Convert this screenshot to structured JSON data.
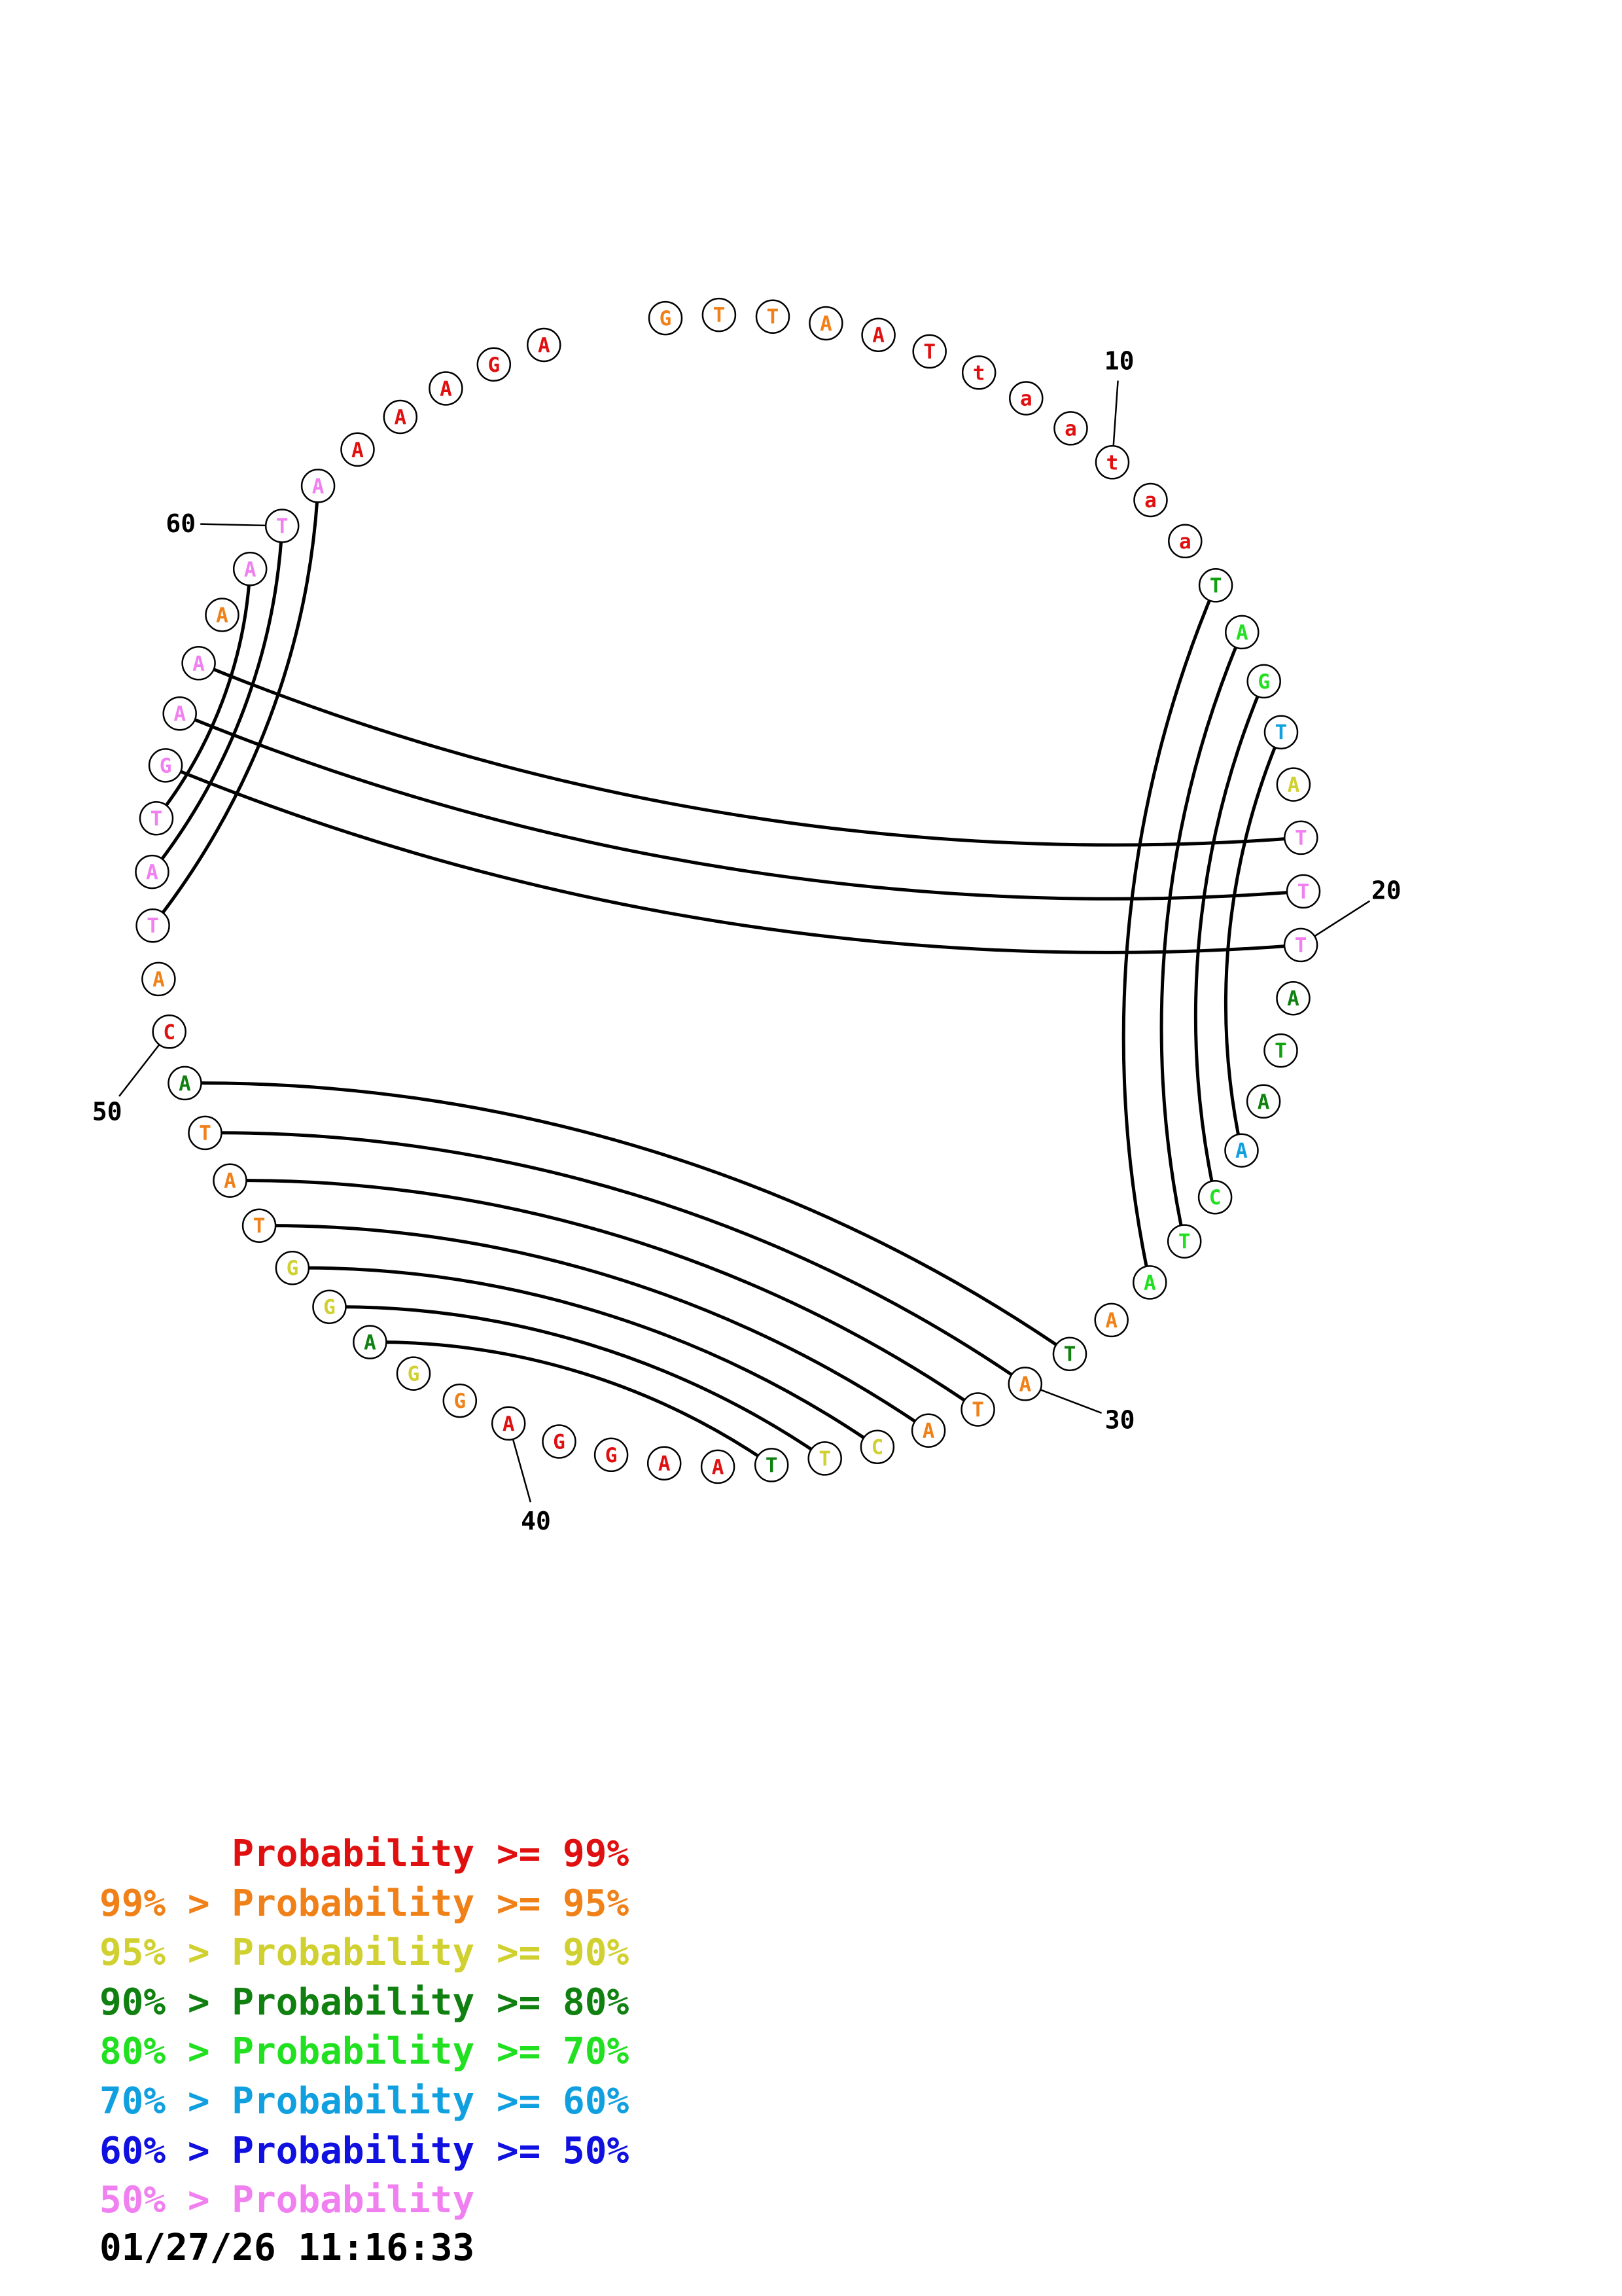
{
  "sequence": [
    {
      "n": 1,
      "base": "G",
      "color": "#f08018"
    },
    {
      "n": 2,
      "base": "T",
      "color": "#f08018"
    },
    {
      "n": 3,
      "base": "T",
      "color": "#f08018"
    },
    {
      "n": 4,
      "base": "A",
      "color": "#f08018"
    },
    {
      "n": 5,
      "base": "A",
      "color": "#e01010"
    },
    {
      "n": 6,
      "base": "T",
      "color": "#e01010"
    },
    {
      "n": 7,
      "base": "t",
      "color": "#e01010"
    },
    {
      "n": 8,
      "base": "a",
      "color": "#e01010"
    },
    {
      "n": 9,
      "base": "a",
      "color": "#e01010"
    },
    {
      "n": 10,
      "base": "t",
      "color": "#e01010"
    },
    {
      "n": 11,
      "base": "a",
      "color": "#e01010"
    },
    {
      "n": 12,
      "base": "a",
      "color": "#e01010"
    },
    {
      "n": 13,
      "base": "T",
      "color": "#10a010"
    },
    {
      "n": 14,
      "base": "A",
      "color": "#20e020"
    },
    {
      "n": 15,
      "base": "G",
      "color": "#20e020"
    },
    {
      "n": 16,
      "base": "T",
      "color": "#10a0e0"
    },
    {
      "n": 17,
      "base": "A",
      "color": "#d0d030"
    },
    {
      "n": 18,
      "base": "T",
      "color": "#f080f0"
    },
    {
      "n": 19,
      "base": "T",
      "color": "#f080f0"
    },
    {
      "n": 20,
      "base": "T",
      "color": "#f080f0"
    },
    {
      "n": 21,
      "base": "A",
      "color": "#108010"
    },
    {
      "n": 22,
      "base": "T",
      "color": "#10a010"
    },
    {
      "n": 23,
      "base": "A",
      "color": "#108010"
    },
    {
      "n": 24,
      "base": "A",
      "color": "#10a0e0"
    },
    {
      "n": 25,
      "base": "C",
      "color": "#20e020"
    },
    {
      "n": 26,
      "base": "T",
      "color": "#20e020"
    },
    {
      "n": 27,
      "base": "A",
      "color": "#20e020"
    },
    {
      "n": 28,
      "base": "A",
      "color": "#f08018"
    },
    {
      "n": 29,
      "base": "T",
      "color": "#108010"
    },
    {
      "n": 30,
      "base": "A",
      "color": "#f08018"
    },
    {
      "n": 31,
      "base": "T",
      "color": "#f08018"
    },
    {
      "n": 32,
      "base": "A",
      "color": "#f08018"
    },
    {
      "n": 33,
      "base": "C",
      "color": "#d0d030"
    },
    {
      "n": 34,
      "base": "T",
      "color": "#d0d030"
    },
    {
      "n": 35,
      "base": "T",
      "color": "#108010"
    },
    {
      "n": 36,
      "base": "A",
      "color": "#e01010"
    },
    {
      "n": 37,
      "base": "A",
      "color": "#e01010"
    },
    {
      "n": 38,
      "base": "G",
      "color": "#e01010"
    },
    {
      "n": 39,
      "base": "G",
      "color": "#e01010"
    },
    {
      "n": 40,
      "base": "A",
      "color": "#e01010"
    },
    {
      "n": 41,
      "base": "G",
      "color": "#f08018"
    },
    {
      "n": 42,
      "base": "G",
      "color": "#d0d030"
    },
    {
      "n": 43,
      "base": "A",
      "color": "#108010"
    },
    {
      "n": 44,
      "base": "G",
      "color": "#d0d030"
    },
    {
      "n": 45,
      "base": "G",
      "color": "#d0d030"
    },
    {
      "n": 46,
      "base": "T",
      "color": "#f08018"
    },
    {
      "n": 47,
      "base": "A",
      "color": "#f08018"
    },
    {
      "n": 48,
      "base": "T",
      "color": "#f08018"
    },
    {
      "n": 49,
      "base": "A",
      "color": "#108010"
    },
    {
      "n": 50,
      "base": "C",
      "color": "#e01010"
    },
    {
      "n": 51,
      "base": "A",
      "color": "#f08018"
    },
    {
      "n": 52,
      "base": "T",
      "color": "#f080f0"
    },
    {
      "n": 53,
      "base": "A",
      "color": "#f080f0"
    },
    {
      "n": 54,
      "base": "T",
      "color": "#f080f0"
    },
    {
      "n": 55,
      "base": "G",
      "color": "#f080f0"
    },
    {
      "n": 56,
      "base": "A",
      "color": "#f080f0"
    },
    {
      "n": 57,
      "base": "A",
      "color": "#f080f0"
    },
    {
      "n": 58,
      "base": "A",
      "color": "#f08018"
    },
    {
      "n": 59,
      "base": "A",
      "color": "#f080f0"
    },
    {
      "n": 60,
      "base": "T",
      "color": "#f080f0"
    },
    {
      "n": 61,
      "base": "A",
      "color": "#f080f0"
    },
    {
      "n": 62,
      "base": "A",
      "color": "#e01010"
    },
    {
      "n": 63,
      "base": "A",
      "color": "#e01010"
    },
    {
      "n": 64,
      "base": "A",
      "color": "#e01010"
    },
    {
      "n": 65,
      "base": "G",
      "color": "#e01010"
    },
    {
      "n": 66,
      "base": "A",
      "color": "#e01010"
    }
  ],
  "pairs": [
    [
      13,
      27
    ],
    [
      14,
      26
    ],
    [
      15,
      25
    ],
    [
      16,
      24
    ],
    [
      18,
      57
    ],
    [
      19,
      56
    ],
    [
      20,
      55
    ],
    [
      29,
      49
    ],
    [
      30,
      48
    ],
    [
      31,
      47
    ],
    [
      32,
      46
    ],
    [
      33,
      45
    ],
    [
      34,
      44
    ],
    [
      35,
      43
    ],
    [
      52,
      61
    ],
    [
      53,
      60
    ],
    [
      54,
      59
    ]
  ],
  "tick_labels": [
    {
      "n": 10,
      "label": "10"
    },
    {
      "n": 20,
      "label": "20"
    },
    {
      "n": 30,
      "label": "30"
    },
    {
      "n": 40,
      "label": "40"
    },
    {
      "n": 50,
      "label": "50"
    },
    {
      "n": 60,
      "label": "60"
    }
  ],
  "legend": [
    {
      "prefix": "    ",
      "text": "Probability >= 99%",
      "color": "#e01010"
    },
    {
      "prefix": "99% > ",
      "text": "Probability >= 95%",
      "color": "#f08018"
    },
    {
      "prefix": "95% > ",
      "text": "Probability >= 90%",
      "color": "#d0d030"
    },
    {
      "prefix": "90% > ",
      "text": "Probability >= 80%",
      "color": "#108010"
    },
    {
      "prefix": "80% > ",
      "text": "Probability >= 70%",
      "color": "#20e020"
    },
    {
      "prefix": "70% > ",
      "text": "Probability >= 60%",
      "color": "#10a0e0"
    },
    {
      "prefix": "60% > ",
      "text": "Probability >= 50%",
      "color": "#1010e0"
    },
    {
      "prefix": "50% > ",
      "text": "Probability",
      "color": "#f080f0"
    }
  ],
  "timestamp": "01/27/26 11:16:33"
}
